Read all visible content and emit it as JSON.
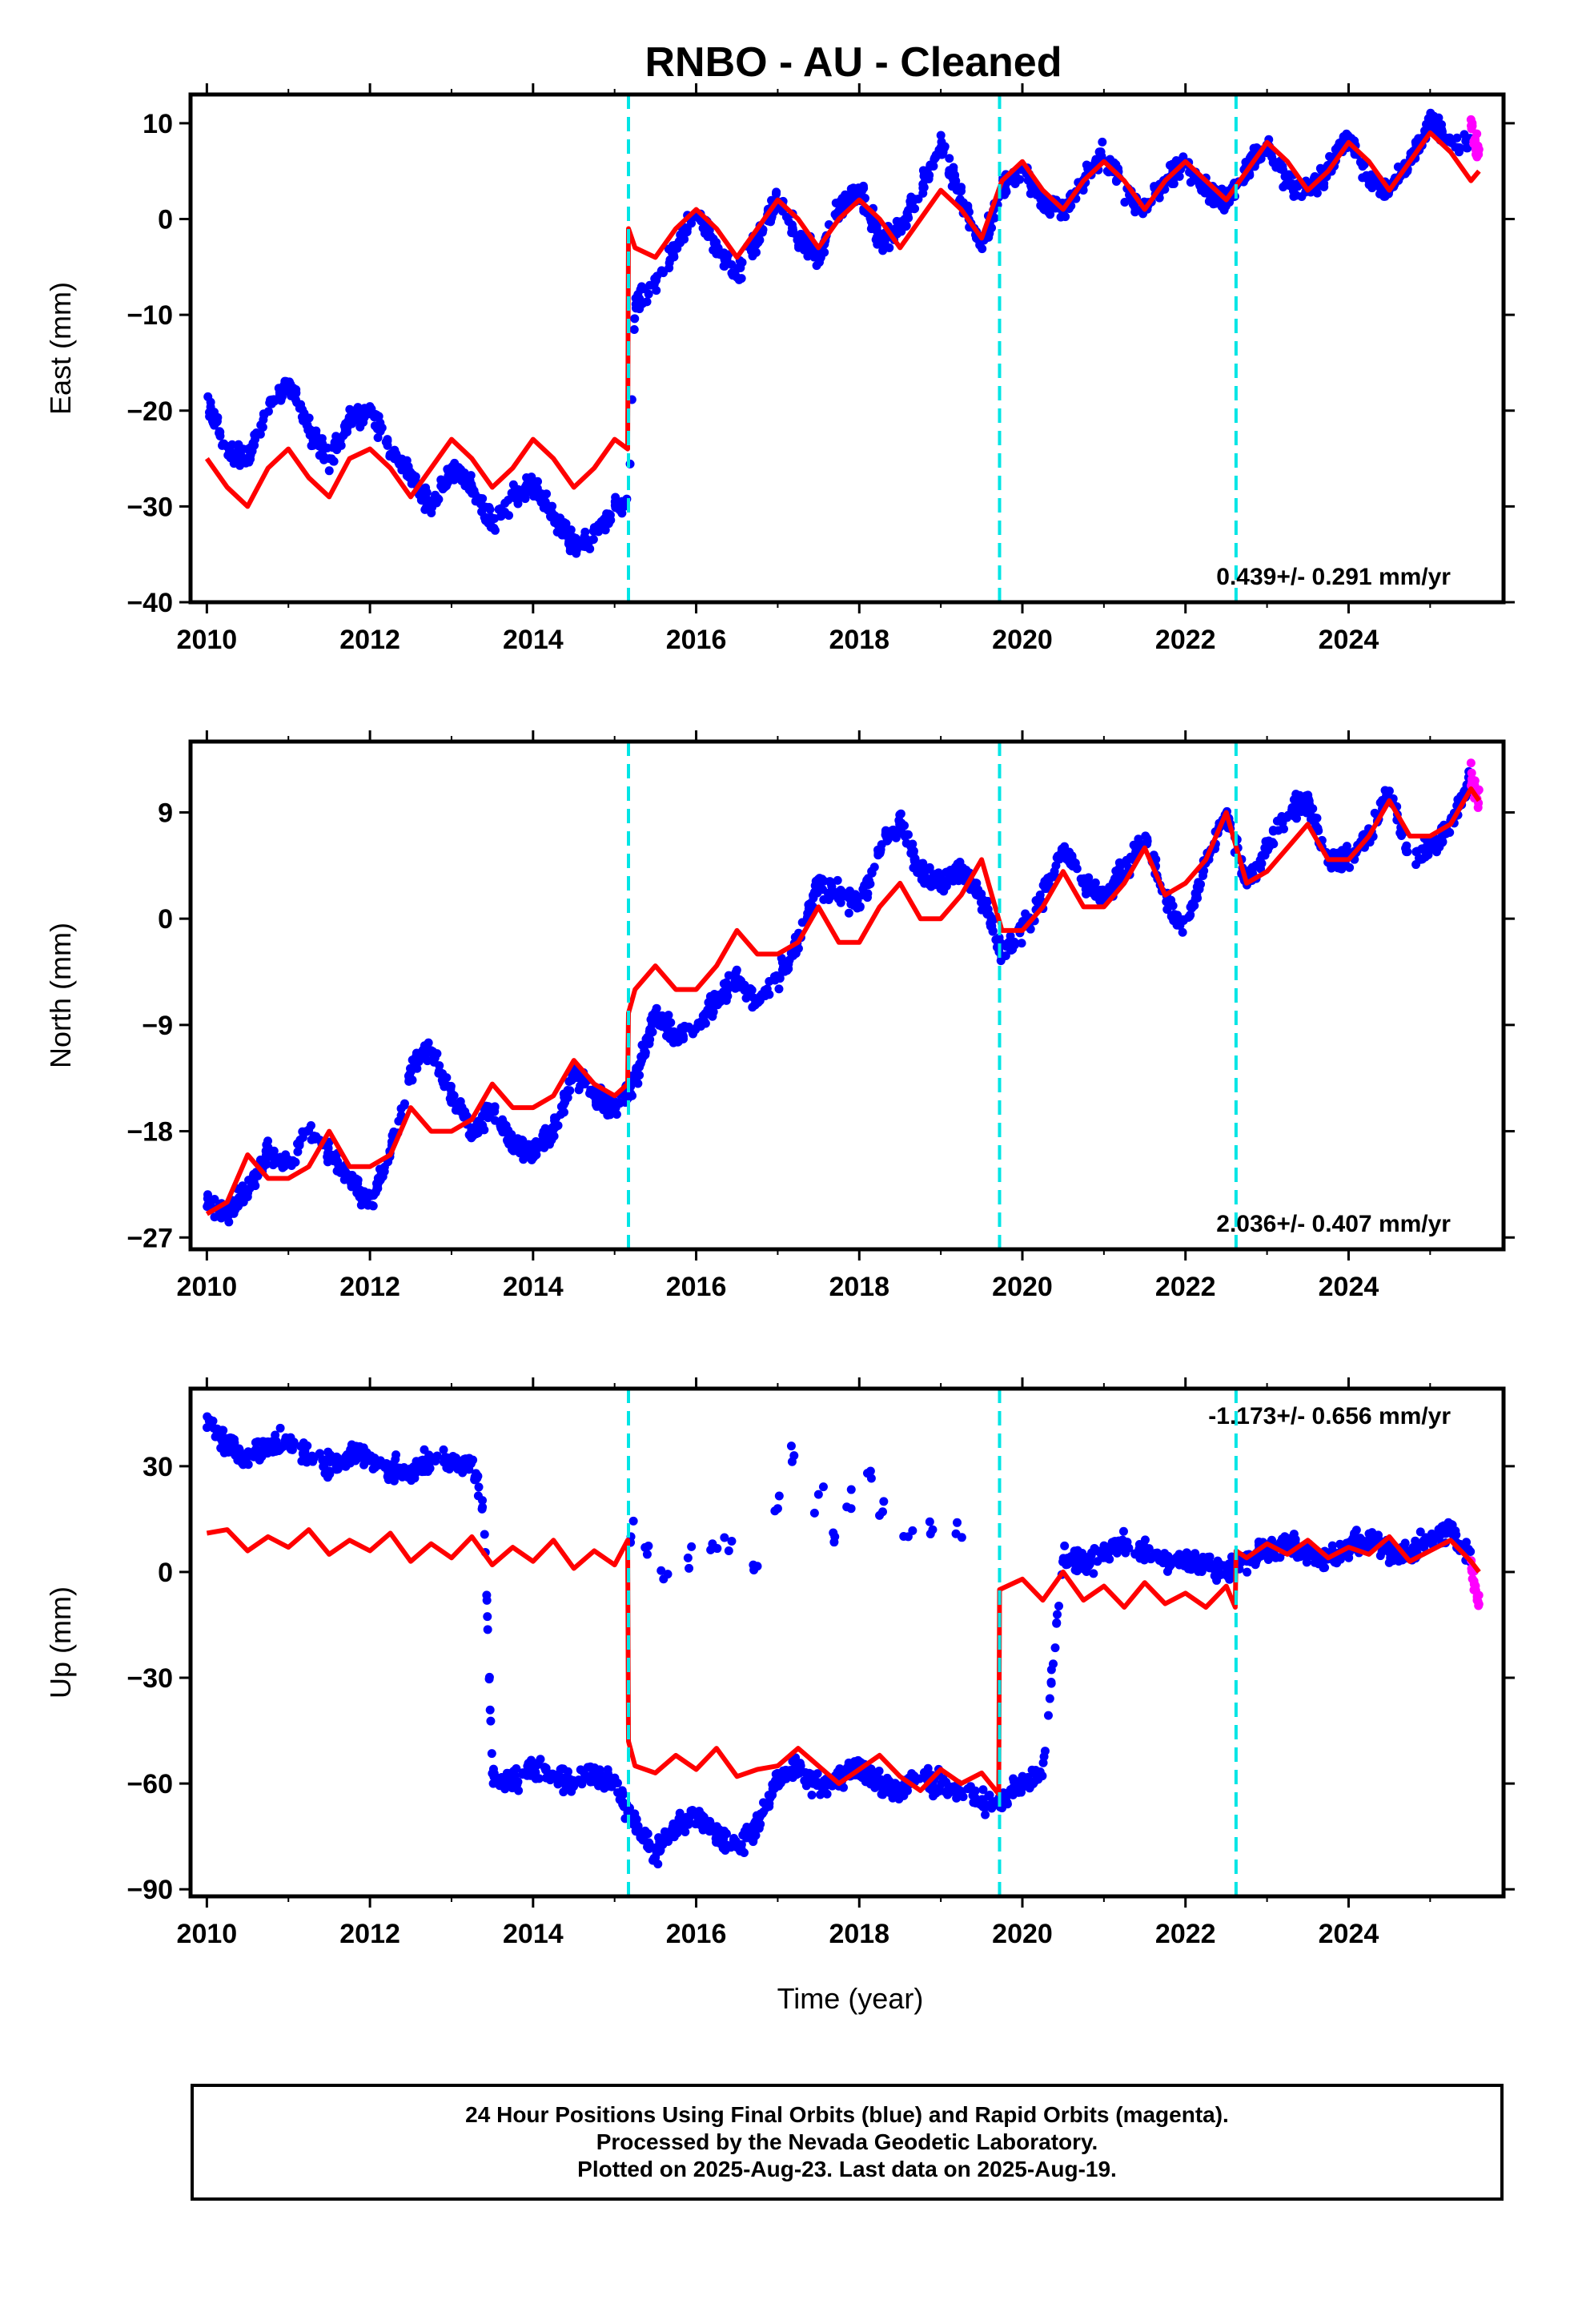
{
  "title": "RNBO  - AU - Cleaned",
  "xlabel": "Time (year)",
  "colors": {
    "final_orbits": "#0000ff",
    "rapid_orbits": "#ff00ff",
    "model_fit": "#ff0000",
    "equipment_change": "#00e5e5"
  },
  "footer": {
    "line1": "24 Hour Positions Using Final Orbits (blue) and Rapid Orbits (magenta).",
    "line2": "Processed by the Nevada Geodetic Laboratory.",
    "line3": "Plotted on 2025-Aug-23. Last data on 2025-Aug-19."
  },
  "chart_data": [
    {
      "type": "scatter",
      "panel": "east",
      "ylabel": "East (mm)",
      "xlim": [
        2009.8,
        2025.9
      ],
      "ylim": [
        -40,
        13
      ],
      "xticks": [
        2010,
        2012,
        2014,
        2016,
        2018,
        2020,
        2022,
        2024
      ],
      "yticks": [
        -40,
        -30,
        -20,
        -10,
        0,
        10
      ],
      "vlines": [
        2015.17,
        2019.72,
        2022.62
      ],
      "velocity_label": "0.439+/- 0.291 mm/yr",
      "legend_position": "bottom-right",
      "series": [
        {
          "name": "",
          "x": [
            2010.0,
            2010.25,
            2010.5,
            2010.75,
            2011.0,
            2011.25,
            2011.5,
            2011.75,
            2012.0,
            2012.25,
            2012.5,
            2012.75,
            2013.0,
            2013.25,
            2013.5,
            2013.75,
            2014.0,
            2014.25,
            2014.5,
            2014.75,
            2015.0,
            2015.17,
            2015.25,
            2015.5,
            2015.75,
            2016.0,
            2016.25,
            2016.5,
            2016.75,
            2017.0,
            2017.25,
            2017.5,
            2017.75,
            2018.0,
            2018.25,
            2018.5,
            2018.75,
            2019.0,
            2019.25,
            2019.5,
            2019.75,
            2020.0,
            2020.25,
            2020.5,
            2020.75,
            2021.0,
            2021.25,
            2021.5,
            2021.75,
            2022.0,
            2022.25,
            2022.5,
            2022.75,
            2023.0,
            2023.25,
            2023.5,
            2023.75,
            2024.0,
            2024.25,
            2024.5,
            2024.75,
            2025.0,
            2025.25,
            2025.5
          ],
          "y": [
            -19,
            -24,
            -25,
            -20,
            -17,
            -22,
            -25,
            -21,
            -20,
            -24,
            -27,
            -30,
            -26,
            -28,
            -32,
            -29,
            -28,
            -31,
            -34,
            -33,
            -30,
            -30,
            -9,
            -7,
            -3,
            1,
            -3,
            -6,
            -2,
            2,
            -2,
            -4,
            1,
            3,
            -2,
            -1,
            3,
            8,
            2,
            -3,
            3,
            5,
            2,
            1,
            4,
            7,
            3,
            1,
            4,
            6,
            3,
            2,
            5,
            8,
            4,
            3,
            5,
            9,
            4,
            3,
            6,
            10,
            8,
            8
          ]
        },
        {
          "name": "",
          "x": [
            2025.5,
            2025.55,
            2025.6
          ],
          "y": [
            10,
            8,
            7
          ]
        },
        {
          "name": "",
          "x": [
            2010.0,
            2010.25,
            2010.5,
            2010.75,
            2011.0,
            2011.25,
            2011.5,
            2011.75,
            2012.0,
            2012.25,
            2012.5,
            2012.75,
            2013.0,
            2013.25,
            2013.5,
            2013.75,
            2014.0,
            2014.25,
            2014.5,
            2014.75,
            2015.0,
            2015.16,
            2015.17,
            2015.25,
            2015.5,
            2015.75,
            2016.0,
            2016.25,
            2016.5,
            2016.75,
            2017.0,
            2017.25,
            2017.5,
            2017.75,
            2018.0,
            2018.25,
            2018.5,
            2018.75,
            2019.0,
            2019.25,
            2019.5,
            2019.75,
            2020.0,
            2020.25,
            2020.5,
            2020.75,
            2021.0,
            2021.25,
            2021.5,
            2021.75,
            2022.0,
            2022.25,
            2022.5,
            2022.75,
            2023.0,
            2023.25,
            2023.5,
            2023.75,
            2024.0,
            2024.25,
            2024.5,
            2024.75,
            2025.0,
            2025.25,
            2025.5,
            2025.6
          ],
          "y": [
            -25,
            -28,
            -30,
            -26,
            -24,
            -27,
            -29,
            -25,
            -24,
            -26,
            -29,
            -26,
            -23,
            -25,
            -28,
            -26,
            -23,
            -25,
            -28,
            -26,
            -23,
            -24,
            -1,
            -3,
            -4,
            -1,
            1,
            -1,
            -4,
            -1,
            2,
            0,
            -3,
            0,
            2,
            0,
            -3,
            0,
            3,
            1,
            -2,
            4,
            6,
            3,
            1,
            4,
            6,
            4,
            1,
            4,
            6,
            4,
            2,
            5,
            8,
            6,
            3,
            5,
            8,
            6,
            3,
            6,
            9,
            7,
            4,
            5
          ]
        }
      ]
    },
    {
      "type": "scatter",
      "panel": "north",
      "ylabel": "North (mm)",
      "xlim": [
        2009.8,
        2025.9
      ],
      "ylim": [
        -28,
        15
      ],
      "xticks": [
        2010,
        2012,
        2014,
        2016,
        2018,
        2020,
        2022,
        2024
      ],
      "yticks": [
        -27,
        -18,
        -9,
        0,
        9
      ],
      "vlines": [
        2015.17,
        2019.72,
        2022.62
      ],
      "velocity_label": "2.036+/- 0.407 mm/yr",
      "legend_position": "bottom-right",
      "series": [
        {
          "name": "",
          "x": [
            2010.0,
            2010.25,
            2010.5,
            2010.75,
            2011.0,
            2011.25,
            2011.5,
            2011.75,
            2012.0,
            2012.25,
            2012.5,
            2012.75,
            2013.0,
            2013.25,
            2013.5,
            2013.75,
            2014.0,
            2014.25,
            2014.5,
            2014.75,
            2015.0,
            2015.25,
            2015.5,
            2015.75,
            2016.0,
            2016.25,
            2016.5,
            2016.75,
            2017.0,
            2017.25,
            2017.5,
            2017.75,
            2018.0,
            2018.25,
            2018.5,
            2018.75,
            2019.0,
            2019.25,
            2019.5,
            2019.75,
            2020.0,
            2020.25,
            2020.5,
            2020.75,
            2021.0,
            2021.25,
            2021.5,
            2021.75,
            2022.0,
            2022.25,
            2022.5,
            2022.75,
            2023.0,
            2023.25,
            2023.5,
            2023.75,
            2024.0,
            2024.25,
            2024.5,
            2024.75,
            2025.0,
            2025.25,
            2025.5
          ],
          "y": [
            -24,
            -25,
            -23,
            -20,
            -21,
            -18,
            -20,
            -22,
            -24,
            -20,
            -13,
            -11,
            -15,
            -18,
            -16,
            -19,
            -20,
            -18,
            -13,
            -15,
            -16,
            -14,
            -8,
            -10,
            -9,
            -7,
            -5,
            -7,
            -5,
            -2,
            3,
            2,
            1,
            6,
            8,
            4,
            3,
            4,
            2,
            -3,
            -1,
            2,
            6,
            3,
            2,
            4,
            7,
            2,
            -1,
            5,
            9,
            3,
            6,
            9,
            10,
            5,
            5,
            7,
            11,
            5,
            6,
            8,
            12
          ]
        },
        {
          "name": "",
          "x": [
            2025.5,
            2025.55,
            2025.6
          ],
          "y": [
            12,
            11,
            10
          ]
        },
        {
          "name": "",
          "x": [
            2010.0,
            2010.25,
            2010.5,
            2010.75,
            2011.0,
            2011.25,
            2011.5,
            2011.75,
            2012.0,
            2012.25,
            2012.5,
            2012.75,
            2013.0,
            2013.25,
            2013.5,
            2013.75,
            2014.0,
            2014.25,
            2014.5,
            2014.75,
            2015.0,
            2015.16,
            2015.17,
            2015.25,
            2015.5,
            2015.75,
            2016.0,
            2016.25,
            2016.5,
            2016.75,
            2017.0,
            2017.25,
            2017.5,
            2017.75,
            2018.0,
            2018.25,
            2018.5,
            2018.75,
            2019.0,
            2019.25,
            2019.5,
            2019.75,
            2020.0,
            2020.25,
            2020.5,
            2020.75,
            2021.0,
            2021.25,
            2021.5,
            2021.75,
            2022.0,
            2022.25,
            2022.5,
            2022.75,
            2023.0,
            2023.25,
            2023.5,
            2023.75,
            2024.0,
            2024.25,
            2024.5,
            2024.75,
            2025.0,
            2025.25,
            2025.5,
            2025.6
          ],
          "y": [
            -25,
            -24,
            -20,
            -22,
            -22,
            -21,
            -18,
            -21,
            -21,
            -20,
            -16,
            -18,
            -18,
            -17,
            -14,
            -16,
            -16,
            -15,
            -12,
            -14,
            -15,
            -14,
            -8,
            -6,
            -4,
            -6,
            -6,
            -4,
            -1,
            -3,
            -3,
            -2,
            1,
            -2,
            -2,
            1,
            3,
            0,
            0,
            2,
            5,
            -1,
            -1,
            1,
            4,
            1,
            1,
            3,
            6,
            2,
            3,
            5,
            9,
            3,
            4,
            6,
            8,
            5,
            5,
            7,
            10,
            7,
            7,
            8,
            11,
            10
          ]
        }
      ]
    },
    {
      "type": "scatter",
      "panel": "up",
      "ylabel": "Up (mm)",
      "xlim": [
        2009.8,
        2025.9
      ],
      "ylim": [
        -92,
        52
      ],
      "xticks": [
        2010,
        2012,
        2014,
        2016,
        2018,
        2020,
        2022,
        2024
      ],
      "yticks": [
        -90,
        -60,
        -30,
        0,
        30
      ],
      "vlines": [
        2015.17,
        2019.72,
        2022.62
      ],
      "velocity_label": "-1.173+/- 0.656 mm/yr",
      "legend_position": "top-right",
      "series": [
        {
          "name": "",
          "x": [
            2010.0,
            2010.25,
            2010.5,
            2010.75,
            2011.0,
            2011.25,
            2011.5,
            2011.75,
            2012.0,
            2012.25,
            2012.5,
            2012.75,
            2013.0,
            2013.25,
            2013.4,
            2013.5,
            2013.75,
            2014.0,
            2014.25,
            2014.5,
            2014.75,
            2015.0,
            2015.25,
            2015.5,
            2015.75,
            2016.0,
            2016.25,
            2016.5,
            2016.75,
            2017.0,
            2017.25,
            2017.5,
            2017.75,
            2018.0,
            2018.25,
            2018.5,
            2018.75,
            2019.0,
            2019.25,
            2019.5,
            2019.75,
            2020.0,
            2020.25,
            2020.5,
            2020.75,
            2021.0,
            2021.25,
            2021.5,
            2021.75,
            2022.0,
            2022.25,
            2022.5,
            2022.75,
            2023.0,
            2023.25,
            2023.5,
            2023.75,
            2024.0,
            2024.25,
            2024.5,
            2024.75,
            2025.0,
            2025.25,
            2025.5
          ],
          "y": [
            42,
            37,
            32,
            36,
            37,
            33,
            30,
            33,
            32,
            29,
            28,
            32,
            31,
            30,
            18,
            -58,
            -60,
            -55,
            -58,
            -60,
            -57,
            -60,
            -72,
            -80,
            -72,
            -68,
            -75,
            -78,
            -72,
            -58,
            -55,
            -62,
            -58,
            -55,
            -60,
            -62,
            -58,
            -60,
            -62,
            -65,
            -65,
            -60,
            -57,
            5,
            2,
            6,
            8,
            5,
            3,
            4,
            2,
            0,
            3,
            6,
            8,
            5,
            4,
            7,
            9,
            6,
            5,
            10,
            12,
            4
          ]
        },
        {
          "name": "",
          "x": [
            2015.2,
            2015.4,
            2015.6,
            2015.9,
            2016.2,
            2016.4,
            2016.7,
            2017.0,
            2017.2,
            2017.5,
            2017.7,
            2017.9,
            2018.1,
            2018.3,
            2018.6,
            2018.9,
            2019.2
          ],
          "y": [
            10,
            5,
            -2,
            4,
            8,
            6,
            2,
            18,
            33,
            22,
            10,
            18,
            28,
            20,
            10,
            12,
            14
          ]
        },
        {
          "name": "",
          "x": [
            2025.5,
            2025.55,
            2025.6
          ],
          "y": [
            2,
            -3,
            -10
          ]
        },
        {
          "name": "",
          "x": [
            2010.0,
            2010.25,
            2010.5,
            2010.75,
            2011.0,
            2011.25,
            2011.5,
            2011.75,
            2012.0,
            2012.25,
            2012.5,
            2012.75,
            2013.0,
            2013.25,
            2013.5,
            2013.75,
            2014.0,
            2014.25,
            2014.5,
            2014.75,
            2015.0,
            2015.16,
            2015.17,
            2015.25,
            2015.5,
            2015.75,
            2016.0,
            2016.25,
            2016.5,
            2016.75,
            2017.0,
            2017.25,
            2017.5,
            2017.75,
            2018.0,
            2018.25,
            2018.5,
            2018.75,
            2019.0,
            2019.25,
            2019.5,
            2019.71,
            2019.72,
            2020.0,
            2020.25,
            2020.5,
            2020.75,
            2021.0,
            2021.25,
            2021.5,
            2021.75,
            2022.0,
            2022.25,
            2022.5,
            2022.61,
            2022.62,
            2022.75,
            2023.0,
            2023.25,
            2023.5,
            2023.75,
            2024.0,
            2024.25,
            2024.5,
            2024.75,
            2025.0,
            2025.25,
            2025.5,
            2025.6
          ],
          "y": [
            11,
            12,
            6,
            10,
            7,
            12,
            5,
            9,
            6,
            11,
            3,
            8,
            4,
            10,
            2,
            7,
            3,
            9,
            1,
            6,
            2,
            9,
            -48,
            -55,
            -57,
            -52,
            -56,
            -50,
            -58,
            -56,
            -55,
            -50,
            -55,
            -60,
            -56,
            -52,
            -58,
            -62,
            -56,
            -60,
            -57,
            -63,
            -5,
            -2,
            -8,
            0,
            -8,
            -4,
            -10,
            -3,
            -9,
            -6,
            -10,
            -4,
            -10,
            6,
            4,
            8,
            5,
            9,
            4,
            7,
            5,
            10,
            3,
            6,
            9,
            3,
            0
          ]
        }
      ]
    }
  ]
}
